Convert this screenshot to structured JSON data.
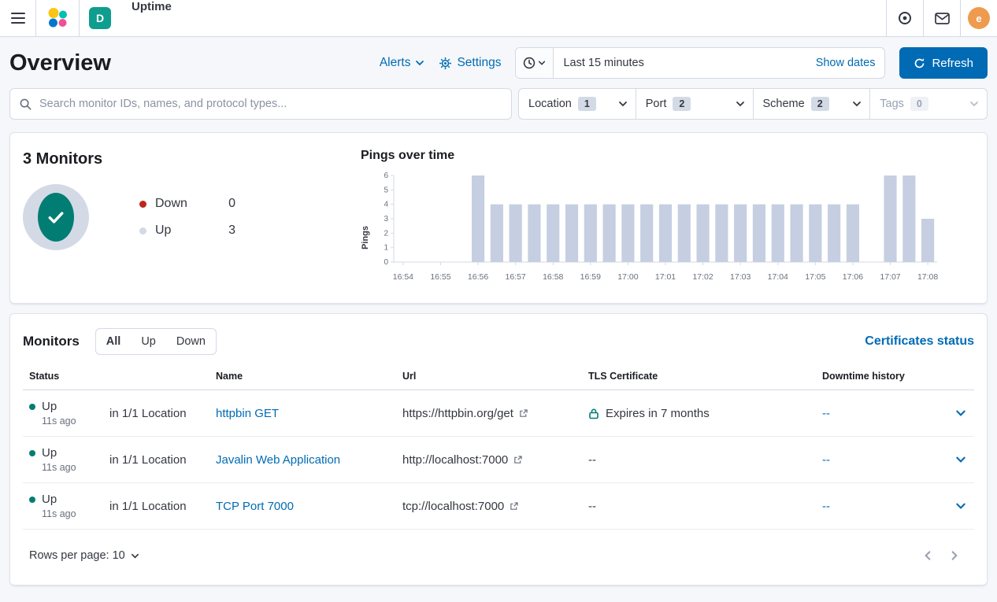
{
  "topbar": {
    "app_title": "Uptime",
    "space_badge": "D",
    "avatar_initial": "e"
  },
  "header": {
    "title": "Overview",
    "alerts": "Alerts",
    "settings": "Settings",
    "time_range": "Last 15 minutes",
    "show_dates": "Show dates",
    "refresh": "Refresh"
  },
  "filters": {
    "search_placeholder": "Search monitor IDs, names, and protocol types...",
    "groups": [
      {
        "label": "Location",
        "count": "1"
      },
      {
        "label": "Port",
        "count": "2"
      },
      {
        "label": "Scheme",
        "count": "2"
      },
      {
        "label": "Tags",
        "count": "0"
      }
    ]
  },
  "snapshot": {
    "title": "3 Monitors",
    "legend": [
      {
        "label": "Down",
        "value": "0",
        "color": "#bd271e"
      },
      {
        "label": "Up",
        "value": "3",
        "color": "#d3dae6"
      }
    ]
  },
  "chart_data": {
    "type": "bar",
    "title": "Pings over time",
    "ylabel": "Pings",
    "ylim": [
      0,
      6
    ],
    "y_ticks": [
      0,
      1,
      2,
      3,
      4,
      5,
      6
    ],
    "bar_color": "#c5cfe1",
    "legend_position": "none",
    "grid": false,
    "x": [
      "16:54:00",
      "16:54:30",
      "16:55:00",
      "16:55:30",
      "16:56:00",
      "16:56:30",
      "16:57:00",
      "16:57:30",
      "16:58:00",
      "16:58:30",
      "16:59:00",
      "16:59:30",
      "17:00:00",
      "17:00:30",
      "17:01:00",
      "17:01:30",
      "17:02:00",
      "17:02:30",
      "17:03:00",
      "17:03:30",
      "17:04:00",
      "17:04:30",
      "17:05:00",
      "17:05:30",
      "17:06:00",
      "17:06:30",
      "17:07:00",
      "17:07:30",
      "17:08:00"
    ],
    "values": [
      0,
      0,
      0,
      0,
      6,
      4,
      4,
      4,
      4,
      4,
      4,
      4,
      4,
      4,
      4,
      4,
      4,
      4,
      4,
      4,
      4,
      4,
      4,
      4,
      4,
      0,
      6,
      6,
      3
    ],
    "x_tick_labels": [
      "16:54",
      "16:55",
      "16:56",
      "16:57",
      "16:58",
      "16:59",
      "17:00",
      "17:01",
      "17:02",
      "17:03",
      "17:04",
      "17:05",
      "17:06",
      "17:07",
      "17:08"
    ]
  },
  "monitors": {
    "title": "Monitors",
    "tabs": [
      {
        "label": "All"
      },
      {
        "label": "Up"
      },
      {
        "label": "Down"
      }
    ],
    "selected_tab": "All",
    "certificates_link": "Certificates status",
    "columns": {
      "status": "Status",
      "name": "Name",
      "url": "Url",
      "tls": "TLS Certificate",
      "downtime": "Downtime history"
    },
    "rows": [
      {
        "status": "Up",
        "ago": "11s ago",
        "location": "in 1/1 Location",
        "name": "httpbin GET",
        "url": "https://httpbin.org/get",
        "tls": "Expires in 7 months",
        "downtime": "--"
      },
      {
        "status": "Up",
        "ago": "11s ago",
        "location": "in 1/1 Location",
        "name": "Javalin Web Application",
        "url": "http://localhost:7000",
        "tls": "--",
        "downtime": "--"
      },
      {
        "status": "Up",
        "ago": "11s ago",
        "location": "in 1/1 Location",
        "name": "TCP Port 7000",
        "url": "tcp://localhost:7000",
        "tls": "--",
        "downtime": "--"
      }
    ],
    "rows_per_page": "Rows per page: 10"
  },
  "colors": {
    "primary": "#006bb4",
    "success": "#017d73",
    "danger": "#bd271e",
    "bar": "#c5cfe1"
  }
}
